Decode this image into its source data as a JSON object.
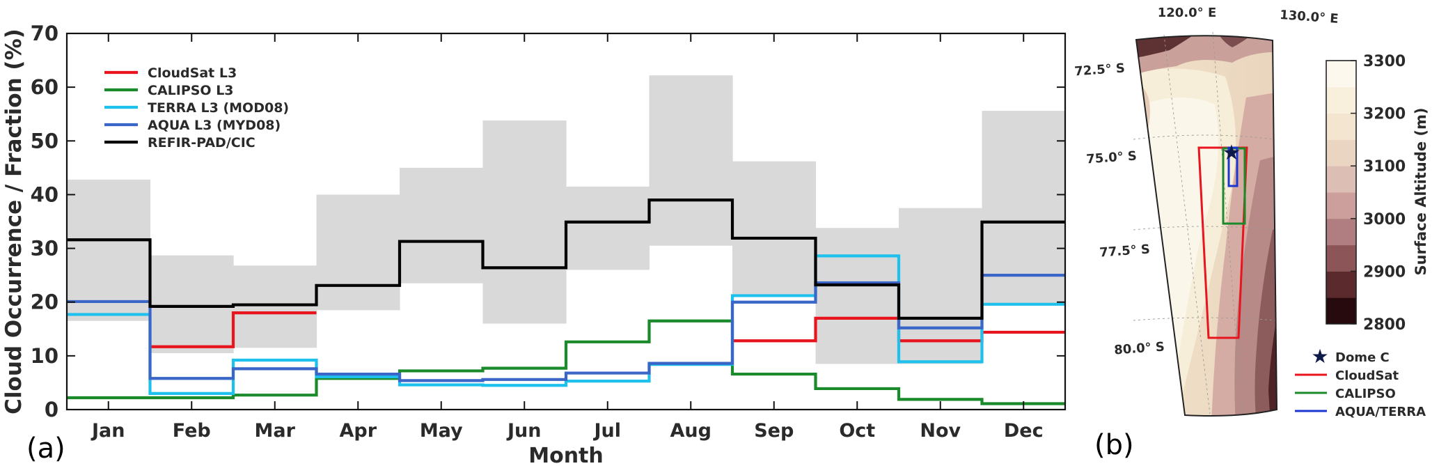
{
  "chart_data": [
    {
      "panel": "(a)",
      "type": "line",
      "step": true,
      "xlabel": "Month",
      "ylabel": "Cloud Occurrence / Fraction (%)",
      "categories": [
        "Jan",
        "Feb",
        "Mar",
        "Apr",
        "May",
        "Jun",
        "Jul",
        "Aug",
        "Sep",
        "Oct",
        "Nov",
        "Dec"
      ],
      "ylim": [
        0,
        70
      ],
      "yticks": [
        0,
        10,
        20,
        30,
        40,
        50,
        60,
        70
      ],
      "grid": false,
      "legend_position": "top-left",
      "band": {
        "lower": [
          16.5,
          10.5,
          11.5,
          18.5,
          23.5,
          16,
          26,
          30.5,
          21,
          8.5,
          8.5,
          19.5
        ],
        "upper": [
          42.8,
          28.7,
          26.8,
          40,
          45,
          53.8,
          41.5,
          62.2,
          46.2,
          33.8,
          37.5,
          55.6
        ],
        "color": "#d9d9d9"
      },
      "series": [
        {
          "name": "CloudSat L3",
          "color": "#e8141e",
          "values": [
            null,
            11.7,
            18,
            null,
            null,
            null,
            null,
            null,
            12.8,
            17,
            12.8,
            14.4
          ]
        },
        {
          "name": "CALIPSO L3",
          "color": "#1a8a2a",
          "values": [
            2.2,
            2.2,
            2.7,
            5.8,
            7.2,
            7.7,
            12.6,
            16.5,
            6.6,
            3.9,
            1.9,
            1.1
          ]
        },
        {
          "name": "TERRA L3 (MOD08)",
          "color": "#1ec0ec",
          "values": [
            17.7,
            3,
            9.2,
            6.1,
            4.6,
            4.5,
            5.3,
            8.4,
            21.2,
            28.6,
            8.9,
            19.6
          ]
        },
        {
          "name": "AQUA L3 (MYD08)",
          "color": "#3a66c8",
          "values": [
            20.1,
            5.8,
            7.6,
            6.6,
            5.4,
            5.6,
            6.8,
            8.6,
            20,
            23.6,
            15.2,
            25
          ]
        },
        {
          "name": "REFIR-PAD/CIC",
          "color": "#000000",
          "values": [
            31.6,
            19.2,
            19.5,
            23.1,
            31.3,
            26.4,
            34.9,
            39,
            31.9,
            23.2,
            17,
            34.9
          ]
        }
      ]
    },
    {
      "panel": "(b)",
      "type": "heatmap",
      "colorbar": {
        "label": "Surface Altitude (m)",
        "ticks": [
          2800,
          2900,
          3000,
          3100,
          3200,
          3300
        ],
        "range": [
          2800,
          3300
        ],
        "colors": [
          "#260a0d",
          "#5a2a2c",
          "#8c5658",
          "#b07e80",
          "#cc9f9c",
          "#ddbeb4",
          "#ead5c2",
          "#f3e5cf",
          "#f8efdc",
          "#fcf8ee"
        ]
      },
      "lon_labels": [
        "120.0° E",
        "130.0° E"
      ],
      "lat_labels": [
        "72.5° S",
        "75.0° S",
        "77.5° S",
        "80.0° S"
      ],
      "legend": [
        {
          "name": "Dome C",
          "symbol": "star",
          "color": "#0d1a4a"
        },
        {
          "name": "CloudSat",
          "symbol": "line",
          "color": "#e8141e"
        },
        {
          "name": "CALIPSO",
          "symbol": "line",
          "color": "#1a8a2a"
        },
        {
          "name": "AQUA/TERRA",
          "symbol": "line",
          "color": "#1a35d0"
        }
      ]
    }
  ]
}
